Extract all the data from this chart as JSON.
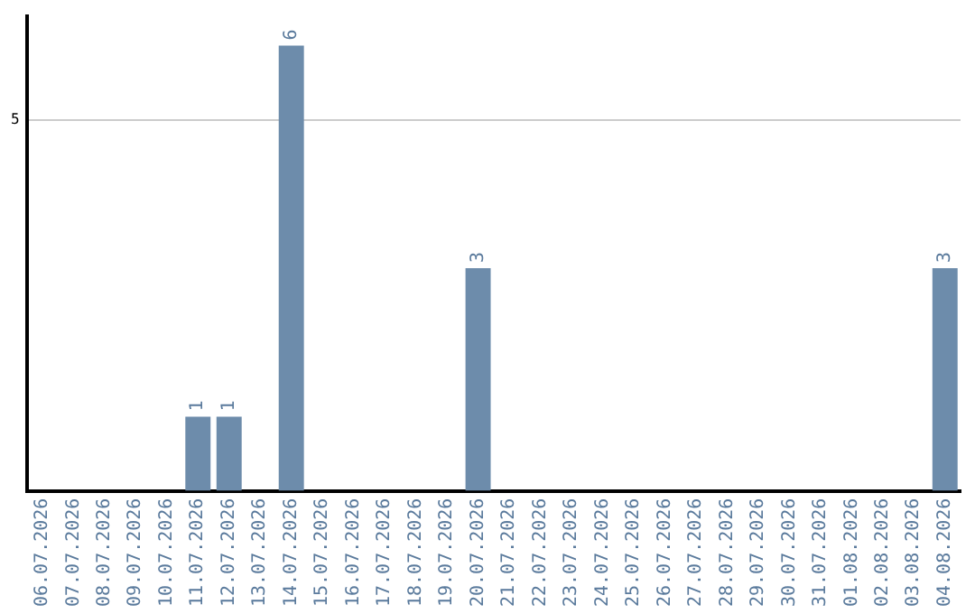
{
  "chart_data": {
    "type": "bar",
    "categories": [
      "06.07.2026",
      "07.07.2026",
      "08.07.2026",
      "09.07.2026",
      "10.07.2026",
      "11.07.2026",
      "12.07.2026",
      "13.07.2026",
      "14.07.2026",
      "15.07.2026",
      "16.07.2026",
      "17.07.2026",
      "18.07.2026",
      "19.07.2026",
      "20.07.2026",
      "21.07.2026",
      "22.07.2026",
      "23.07.2026",
      "24.07.2026",
      "25.07.2026",
      "26.07.2026",
      "27.07.2026",
      "28.07.2026",
      "29.07.2026",
      "30.07.2026",
      "31.07.2026",
      "01.08.2026",
      "02.08.2026",
      "03.08.2026",
      "04.08.2026"
    ],
    "values": [
      0,
      0,
      0,
      0,
      0,
      1,
      1,
      0,
      6,
      0,
      0,
      0,
      0,
      0,
      3,
      0,
      0,
      0,
      0,
      0,
      0,
      0,
      0,
      0,
      0,
      0,
      0,
      0,
      0,
      3
    ],
    "value_labels": [
      null,
      null,
      null,
      null,
      null,
      "1",
      "1",
      null,
      "6",
      null,
      null,
      null,
      null,
      null,
      "3",
      null,
      null,
      null,
      null,
      null,
      null,
      null,
      null,
      null,
      null,
      null,
      null,
      null,
      null,
      "3"
    ],
    "color": "#6d8cab",
    "ylim": [
      0,
      6.4
    ],
    "yticks": [
      5
    ],
    "grid": "y",
    "legend": false
  }
}
